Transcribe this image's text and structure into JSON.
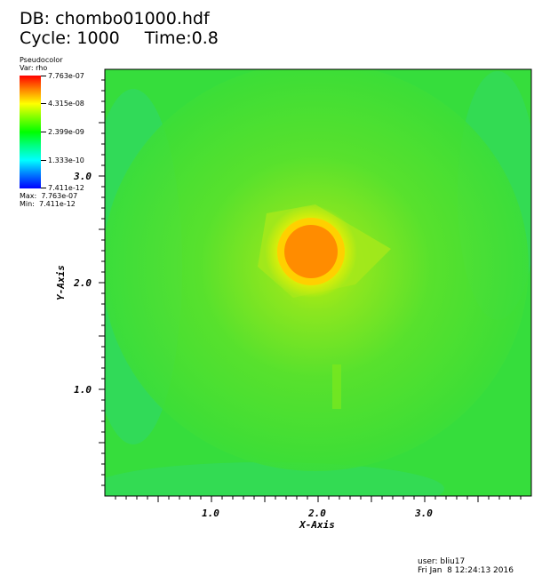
{
  "header": {
    "db_label": "DB: chombo01000.hdf",
    "cycle_label": "Cycle: 1000",
    "time_label": "Time:0.8"
  },
  "legend": {
    "plot_type": "Pseudocolor",
    "var_label": "Var: rho",
    "ticks": [
      "7.763e-07",
      "4.315e-08",
      "2.399e-09",
      "1.333e-10",
      "7.411e-12"
    ],
    "max_label": "Max:  7.763e-07",
    "min_label": "Min:  7.411e-12",
    "colors": [
      "#ff0000",
      "#ff8000",
      "#ffff00",
      "#80ff00",
      "#00ff00",
      "#00ff80",
      "#00ffff",
      "#0080ff",
      "#0000ff"
    ]
  },
  "footer": {
    "user": "user: bliu17",
    "date": "Fri Jan  8 12:24:13 2016"
  },
  "chart_data": {
    "type": "heatmap",
    "variable": "rho",
    "scale": "log",
    "xlabel": "X-Axis",
    "ylabel": "Y-Axis",
    "xlim": [
      0.0,
      4.0
    ],
    "ylim": [
      0.0,
      4.0
    ],
    "x_ticks": [
      "1.0",
      "2.0",
      "3.0"
    ],
    "y_ticks": [
      "1.0",
      "2.0",
      "3.0"
    ],
    "value_range": [
      7.411e-12,
      7.763e-07
    ],
    "features": [
      {
        "name": "dense core",
        "center": [
          1.95,
          2.3
        ],
        "radius": 0.28,
        "approx_value": 3e-07
      },
      {
        "name": "surrounding envelope",
        "center": [
          2.0,
          2.2
        ],
        "radius": 1.6,
        "approx_value": 4e-09
      }
    ]
  }
}
